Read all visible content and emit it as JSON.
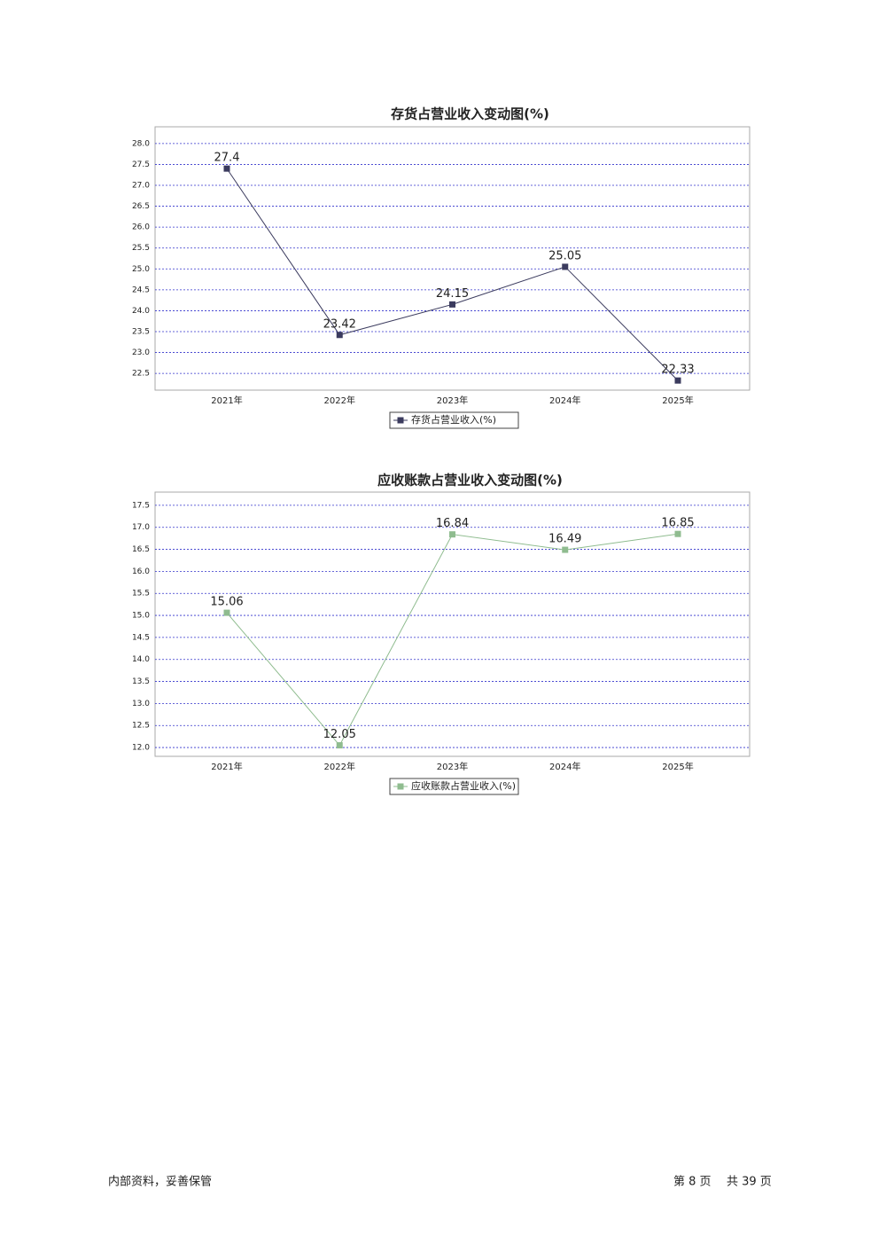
{
  "chart_data": [
    {
      "type": "line",
      "title": "存货占营业收入变动图(%)",
      "categories": [
        "2021年",
        "2022年",
        "2023年",
        "2024年",
        "2025年"
      ],
      "series": [
        {
          "name": "存货占营业收入(%)",
          "color": "#3b3b5e",
          "values": [
            27.4,
            23.42,
            24.15,
            25.05,
            22.33
          ]
        }
      ],
      "ylim": [
        22.1,
        28.4
      ],
      "yticks": [
        {
          "value": 22.5,
          "label": "22.5"
        },
        {
          "value": 23,
          "label": "23.0"
        },
        {
          "value": 23.5,
          "label": "23.5"
        },
        {
          "value": 24,
          "label": "24.0"
        },
        {
          "value": 24.5,
          "label": "24.5"
        },
        {
          "value": 25,
          "label": "25.0"
        },
        {
          "value": 25.5,
          "label": "25.5"
        },
        {
          "value": 26,
          "label": "26.0"
        },
        {
          "value": 26.5,
          "label": "26.5"
        },
        {
          "value": 27,
          "label": "27.0"
        },
        27.5,
        {
          "value": 28,
          "label": "28.0"
        }
      ],
      "grid": true,
      "legend": "bottom"
    },
    {
      "type": "line",
      "title": "应收账款占营业收入变动图(%)",
      "categories": [
        "2021年",
        "2022年",
        "2023年",
        "2024年",
        "2025年"
      ],
      "series": [
        {
          "name": "应收账款占营业收入(%)",
          "color": "#8fbc8f",
          "values": [
            15.06,
            12.05,
            16.84,
            16.49,
            16.85
          ]
        }
      ],
      "ylim": [
        11.8,
        17.8
      ],
      "yticks": [
        {
          "value": 12,
          "label": "12.0"
        },
        12.5,
        {
          "value": 13,
          "label": "13.0"
        },
        13.5,
        {
          "value": 14,
          "label": "14.0"
        },
        14.5,
        {
          "value": 15,
          "label": "15.0"
        },
        15.5,
        {
          "value": 16,
          "label": "16.0"
        },
        16.5,
        {
          "value": 17,
          "label": "17.0"
        },
        17.5
      ],
      "grid": true,
      "legend": "bottom"
    }
  ],
  "footer": {
    "left": "内部资料，妥善保管",
    "page": "第 8 页",
    "total": "共 39 页"
  }
}
